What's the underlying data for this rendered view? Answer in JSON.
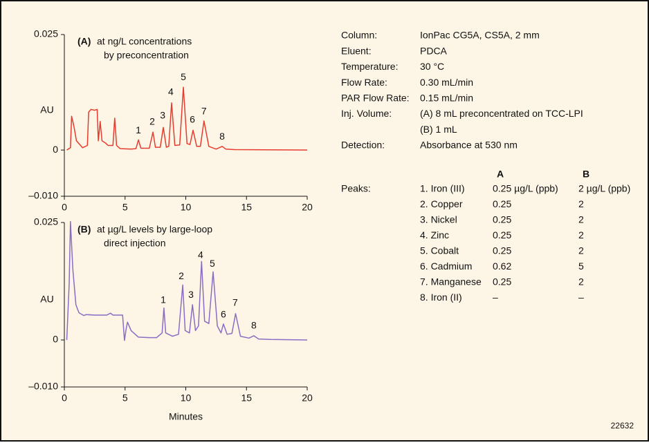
{
  "chart_data": [
    {
      "type": "line",
      "panel_label": "(A)",
      "title_lines": [
        "at ng/L concentrations",
        "by preconcentration"
      ],
      "y_label": "AU",
      "x": [
        0.2,
        0.5,
        0.6,
        0.8,
        1.0,
        1.5,
        1.9,
        2.0,
        2.2,
        2.5,
        2.7,
        2.8,
        2.95,
        3.1,
        3.4,
        3.6,
        4.0,
        4.15,
        4.3,
        4.6,
        5.5,
        5.9,
        6.1,
        6.3,
        7.0,
        7.3,
        7.5,
        7.9,
        8.15,
        8.4,
        8.6,
        8.83,
        9.1,
        9.5,
        9.8,
        10.1,
        10.35,
        10.6,
        10.9,
        11.2,
        11.5,
        11.9,
        12.5,
        13.0,
        13.3,
        14,
        20
      ],
      "series": [
        {
          "color": "#e63b2e",
          "values": [
            0,
            0.0005,
            0.0073,
            0.005,
            0.002,
            0.0005,
            0.001,
            0.0082,
            0.0088,
            0.0086,
            0.0088,
            0.002,
            0.0062,
            0.002,
            0.0015,
            0.001,
            0.001,
            0.0069,
            0.001,
            0.0003,
            0.0002,
            0.0003,
            0.0022,
            0.0004,
            0.0004,
            0.0039,
            0.0006,
            0.0006,
            0.0049,
            0.0006,
            0.0008,
            0.0102,
            0.001,
            0.0011,
            0.0136,
            0.0014,
            0.0012,
            0.0043,
            0.0008,
            0.0008,
            0.0063,
            0.0008,
            0.0002,
            0.0008,
            0.0002,
            0.0001,
            0
          ]
        }
      ],
      "xlim": [
        0,
        20
      ],
      "xticks": [
        0,
        5,
        10,
        15,
        20
      ],
      "ylim": [
        -0.01,
        0.025
      ],
      "yticks": [
        {
          "value": -0.01,
          "label": "–0.010"
        },
        0,
        0.025
      ],
      "peak_labels": [
        {
          "text": "1",
          "x": 6.1,
          "y": 0.0042
        },
        {
          "text": "2",
          "x": 7.24,
          "y": 0.006
        },
        {
          "text": "3",
          "x": 8.1,
          "y": 0.0074
        },
        {
          "text": "4",
          "x": 8.77,
          "y": 0.0125
        },
        {
          "text": "5",
          "x": 9.8,
          "y": 0.0157
        },
        {
          "text": "6",
          "x": 10.54,
          "y": 0.0065
        },
        {
          "text": "7",
          "x": 11.5,
          "y": 0.0083
        },
        {
          "text": "8",
          "x": 12.99,
          "y": 0.0028
        }
      ]
    },
    {
      "type": "line",
      "panel_label": "(B)",
      "title_lines": [
        "at µg/L levels by large-loop",
        "direct injection"
      ],
      "y_label": "AU",
      "x_label": "Minutes",
      "x": [
        0.2,
        0.4,
        0.5,
        0.7,
        0.95,
        1.2,
        1.6,
        1.8,
        2.5,
        3.5,
        3.8,
        4.0,
        4.8,
        4.95,
        5.1,
        5.2,
        5.5,
        6.1,
        7.0,
        7.6,
        8.05,
        8.2,
        8.35,
        8.9,
        9.4,
        9.75,
        9.95,
        10.3,
        10.55,
        10.8,
        11.05,
        11.3,
        11.55,
        11.9,
        12.25,
        12.6,
        12.9,
        13.1,
        13.4,
        13.8,
        14.1,
        14.5,
        15.2,
        15.6,
        16.0,
        17,
        20
      ],
      "series": [
        {
          "color": "#8a6cc4",
          "values": [
            0,
            0.012,
            0.0252,
            0.015,
            0.0075,
            0.0058,
            0.0052,
            0.0054,
            0.0053,
            0.0053,
            0.0057,
            0.0053,
            0.0053,
            -0.0001,
            0.0025,
            0.0038,
            0.002,
            0.0006,
            0.0005,
            0.0005,
            0.0015,
            0.0068,
            0.0015,
            0.0008,
            0.0012,
            0.0117,
            0.002,
            0.0015,
            0.0075,
            0.002,
            0.003,
            0.0167,
            0.004,
            0.0035,
            0.0145,
            0.003,
            0.0015,
            0.0034,
            0.0012,
            0.0014,
            0.0056,
            0.0008,
            0.0004,
            0.0009,
            0.0002,
            0.0001,
            0
          ]
        }
      ],
      "xlim": [
        0,
        20
      ],
      "xticks": [
        0,
        5,
        10,
        15,
        20
      ],
      "ylim": [
        -0.01,
        0.025
      ],
      "yticks": [
        {
          "value": -0.01,
          "label": "–0.010"
        },
        0,
        0.025
      ],
      "peak_labels": [
        {
          "text": "1",
          "x": 8.15,
          "y": 0.0084
        },
        {
          "text": "2",
          "x": 9.63,
          "y": 0.0135
        },
        {
          "text": "3",
          "x": 10.43,
          "y": 0.0095
        },
        {
          "text": "4",
          "x": 11.22,
          "y": 0.018
        },
        {
          "text": "5",
          "x": 12.19,
          "y": 0.0161
        },
        {
          "text": "6",
          "x": 13.1,
          "y": 0.0053
        },
        {
          "text": "7",
          "x": 14.07,
          "y": 0.0078
        },
        {
          "text": "8",
          "x": 15.61,
          "y": 0.003
        }
      ]
    }
  ],
  "conditions": [
    {
      "label": "Column:",
      "value": [
        "IonPac CG5A, CS5A, 2 mm"
      ]
    },
    {
      "label": "Eluent:",
      "value": [
        "PDCA"
      ]
    },
    {
      "label": "Temperature:",
      "value": [
        "30 °C"
      ]
    },
    {
      "label": "Flow Rate:",
      "value": [
        "0.30 mL/min"
      ]
    },
    {
      "label": "PAR Flow Rate:",
      "value": [
        "0.15 mL/min"
      ]
    },
    {
      "label": "Inj. Volume:",
      "value": [
        "(A) 8 mL preconcentrated on TCC-LPI",
        "(B) 1 mL"
      ]
    },
    {
      "label": "Detection:",
      "value": [
        "Absorbance at 530 nm"
      ]
    }
  ],
  "peaks": {
    "label": "Peaks:",
    "headers": [
      "A",
      "B"
    ],
    "rows": [
      [
        "1. Iron (III)",
        "0.25 µg/L (ppb)",
        "2 µg/L (ppb)"
      ],
      [
        "2. Copper",
        "0.25",
        "2"
      ],
      [
        "3. Nickel",
        "0.25",
        "2"
      ],
      [
        "4. Zinc",
        "0.25",
        "2"
      ],
      [
        "5. Cobalt",
        "0.25",
        "2"
      ],
      [
        "6. Cadmium",
        "0.62",
        "5"
      ],
      [
        "7. Manganese",
        "0.25",
        "2"
      ],
      [
        "8. Iron (II)",
        "–",
        "–"
      ]
    ]
  },
  "figure_id": "22632"
}
